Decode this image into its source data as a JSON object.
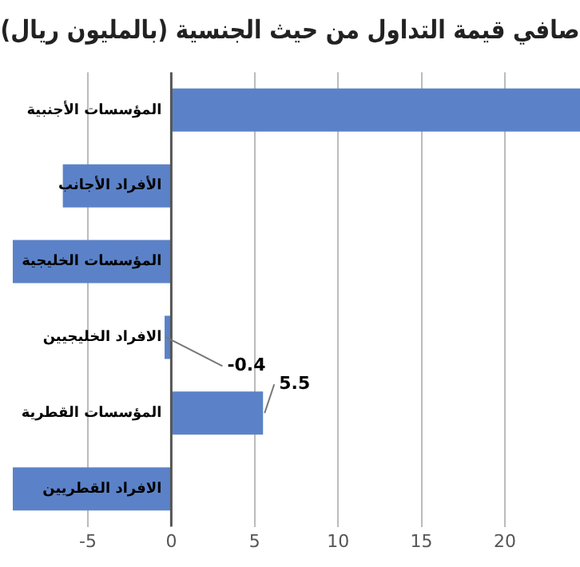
{
  "chart_data": {
    "type": "bar",
    "orientation": "horizontal",
    "title": "صافي قيمة التداول من حيث الجنسية (بالمليون ريال)",
    "categories": [
      "المؤسسات الأجنبية",
      "الأفراد الأجانب",
      "المؤسسات الخليجية",
      "الافراد الخليجيين",
      "المؤسسات القطرية",
      "الافراد القطريين"
    ],
    "values": [
      24.5,
      -6.5,
      -9.5,
      -0.4,
      5.5,
      -9.5
    ],
    "value_labels": [
      null,
      null,
      null,
      "-0.4",
      "5.5",
      null
    ],
    "color": "#5b82c8",
    "xlim": [
      -9.5,
      24.5
    ],
    "xticks": [
      -5,
      0,
      5,
      10,
      15,
      20
    ],
    "grid": "x",
    "legend": false
  }
}
